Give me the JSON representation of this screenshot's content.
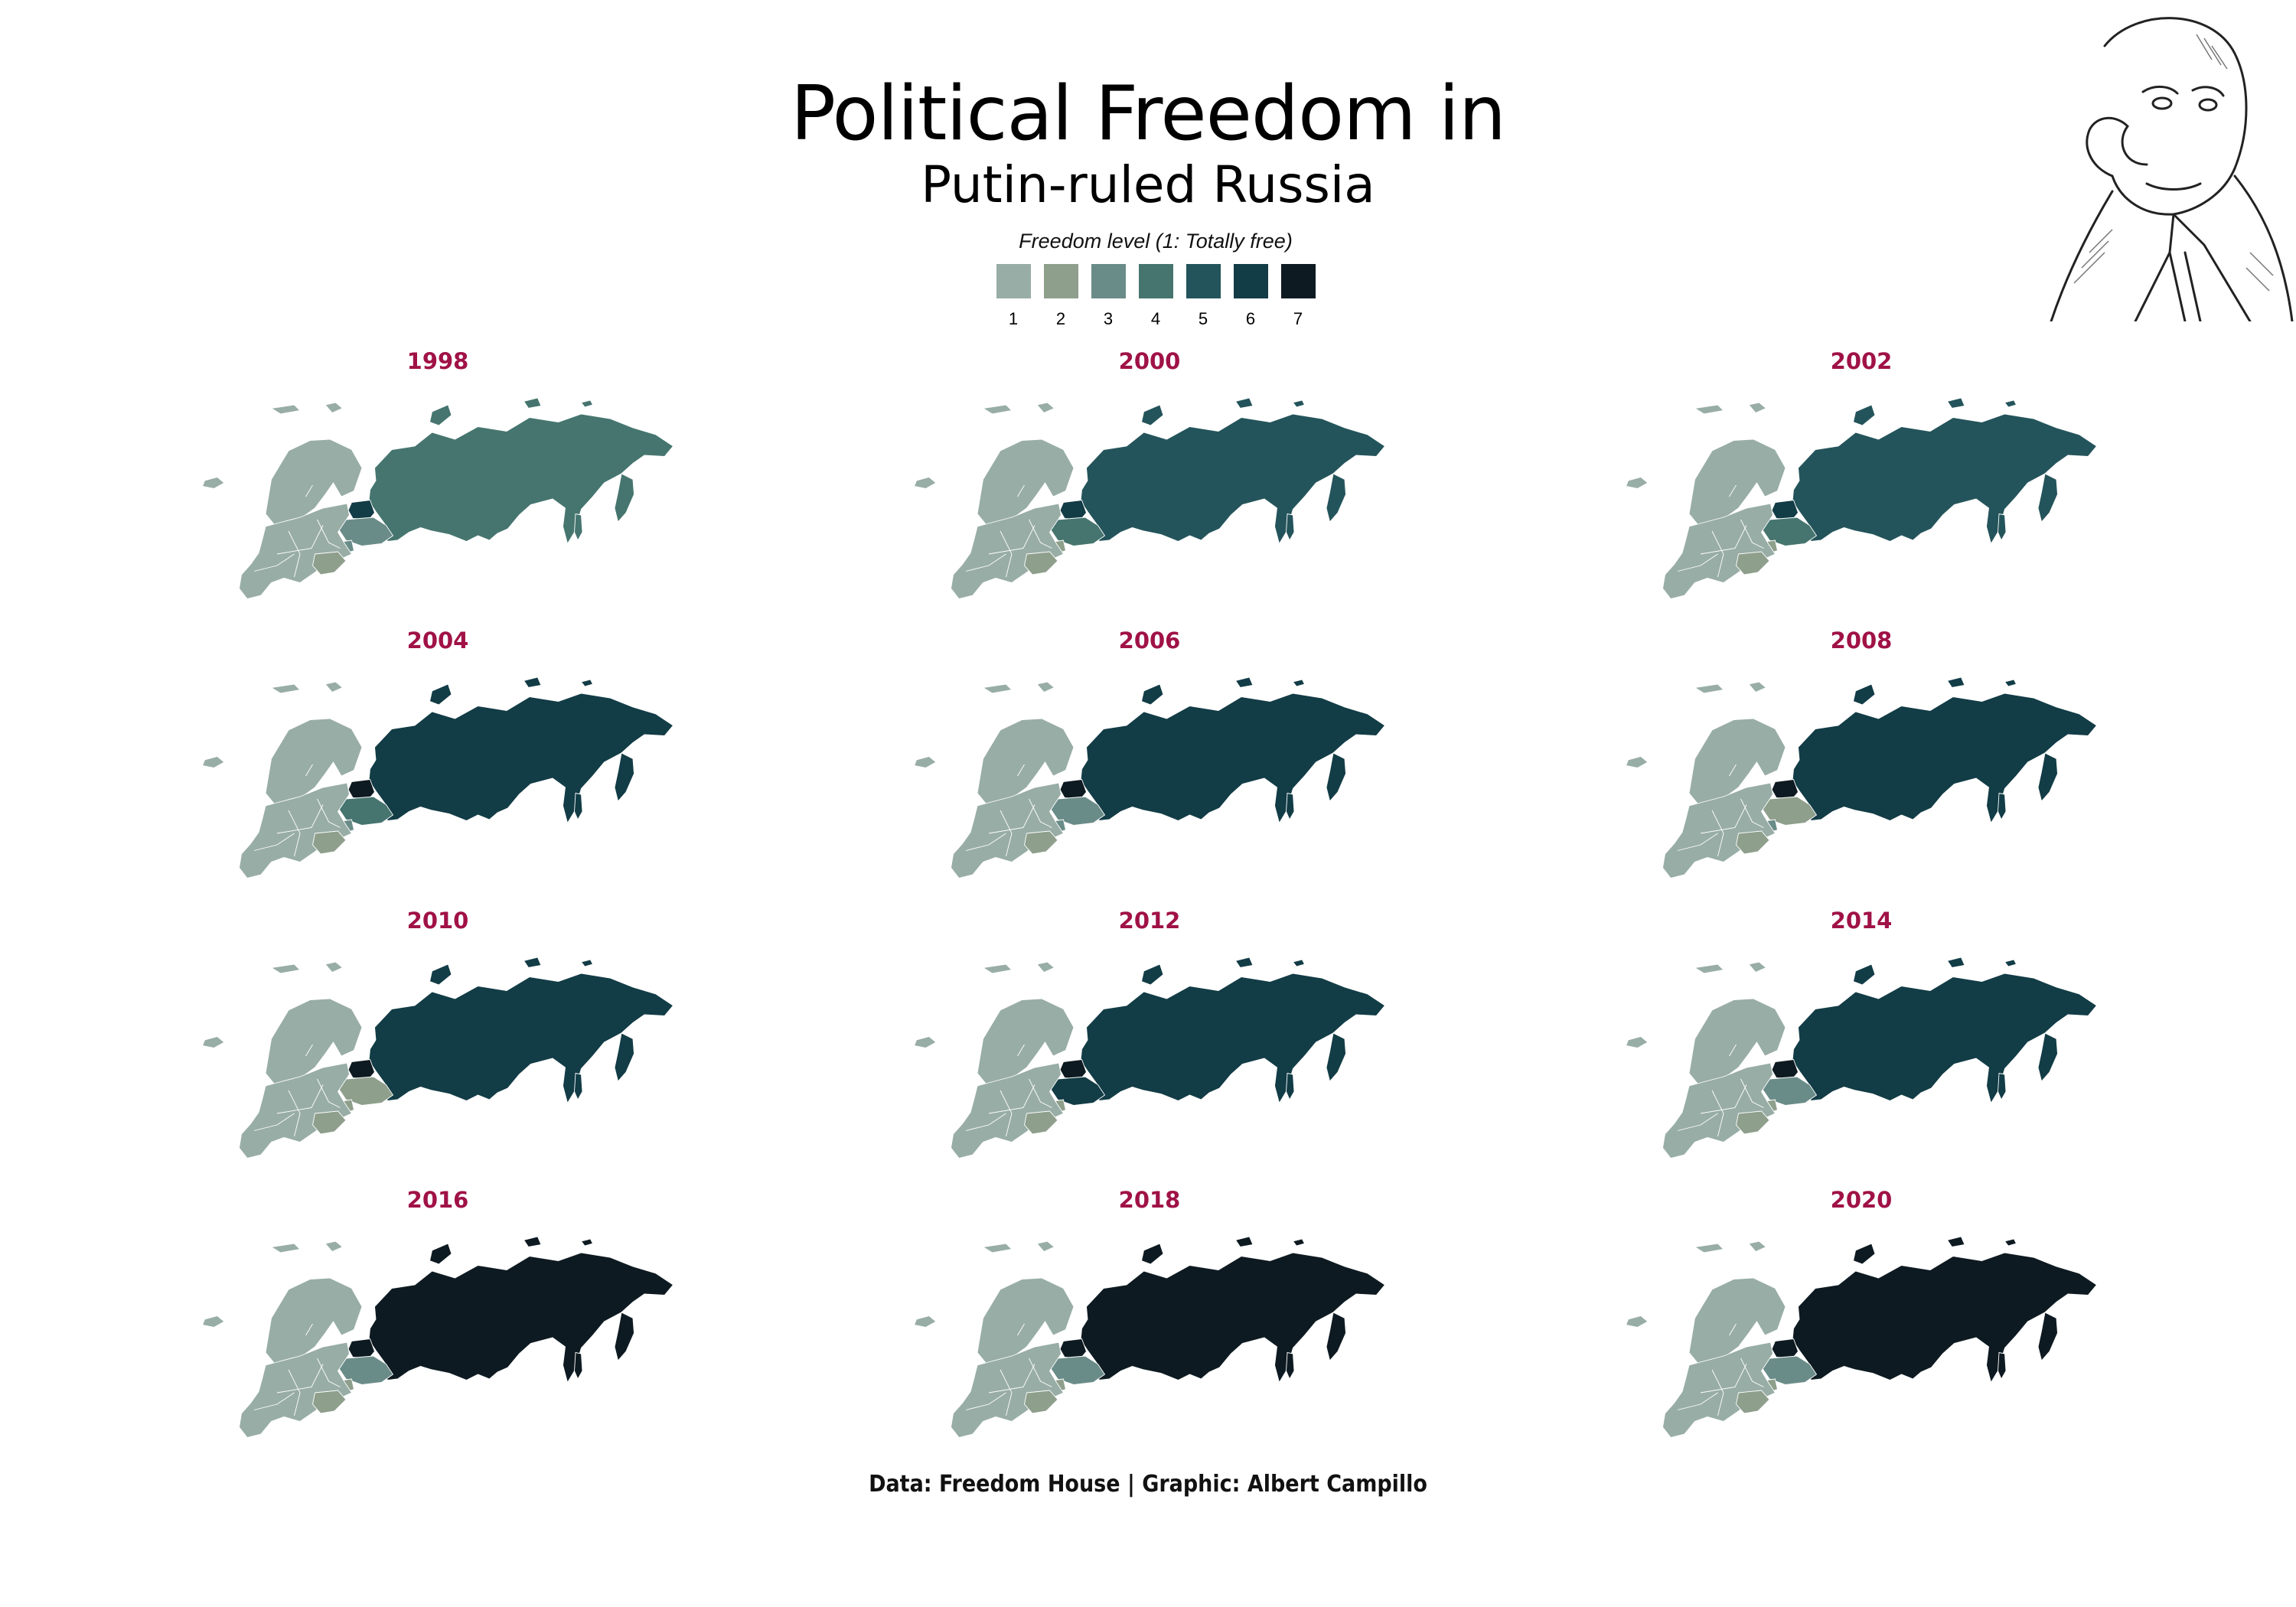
{
  "title": "Political Freedom in",
  "subtitle": "Putin-ruled Russia",
  "legend": {
    "title": "Freedom level (1: Totally free)",
    "levels": [
      {
        "label": "1",
        "color": "#98ada6"
      },
      {
        "label": "2",
        "color": "#8e9f8c"
      },
      {
        "label": "3",
        "color": "#6a8c88"
      },
      {
        "label": "4",
        "color": "#46756f"
      },
      {
        "label": "5",
        "color": "#24545b"
      },
      {
        "label": "6",
        "color": "#123c46"
      },
      {
        "label": "7",
        "color": "#0e1a21"
      }
    ]
  },
  "caption": "Data: Freedom House | Graphic: Albert Campillo",
  "chart_data": {
    "type": "choropleth-small-multiples",
    "variable": "Freedom level (1: Totally free)",
    "scale": [
      1,
      2,
      3,
      4,
      5,
      6,
      7
    ],
    "panels": [
      {
        "year": "1998",
        "russia": 4,
        "belarus": 6,
        "ukraine": 3,
        "europe": 1,
        "moldova": 3,
        "balkans": 2
      },
      {
        "year": "2000",
        "russia": 5,
        "belarus": 6,
        "ukraine": 4,
        "europe": 1,
        "moldova": 2,
        "balkans": 2
      },
      {
        "year": "2002",
        "russia": 5,
        "belarus": 6,
        "ukraine": 4,
        "europe": 1,
        "moldova": 2,
        "balkans": 2
      },
      {
        "year": "2004",
        "russia": 6,
        "belarus": 7,
        "ukraine": 4,
        "europe": 1,
        "moldova": 3,
        "balkans": 2
      },
      {
        "year": "2006",
        "russia": 6,
        "belarus": 7,
        "ukraine": 3,
        "europe": 1,
        "moldova": 3,
        "balkans": 2
      },
      {
        "year": "2008",
        "russia": 6,
        "belarus": 7,
        "ukraine": 2,
        "europe": 1,
        "moldova": 3,
        "balkans": 2
      },
      {
        "year": "2010",
        "russia": 6,
        "belarus": 7,
        "ukraine": 2,
        "europe": 1,
        "moldova": 2,
        "balkans": 2
      },
      {
        "year": "2012",
        "russia": 6,
        "belarus": 7,
        "ukraine": 6,
        "europe": 1,
        "moldova": 2,
        "balkans": 2
      },
      {
        "year": "2014",
        "russia": 6,
        "belarus": 7,
        "ukraine": 3,
        "europe": 1,
        "moldova": 2,
        "balkans": 2
      },
      {
        "year": "2016",
        "russia": 7,
        "belarus": 7,
        "ukraine": 3,
        "europe": 1,
        "moldova": 2,
        "balkans": 2
      },
      {
        "year": "2018",
        "russia": 7,
        "belarus": 7,
        "ukraine": 3,
        "europe": 1,
        "moldova": 2,
        "balkans": 2
      },
      {
        "year": "2020",
        "russia": 7,
        "belarus": 7,
        "ukraine": 3,
        "europe": 1,
        "moldova": 2,
        "balkans": 2
      }
    ]
  }
}
